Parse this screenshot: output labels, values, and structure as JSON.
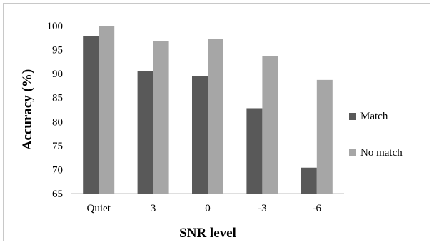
{
  "chart_data": {
    "type": "bar",
    "categories": [
      "Quiet",
      "3",
      "0",
      "-3",
      "-6"
    ],
    "series": [
      {
        "name": "Match",
        "values": [
          97.9,
          90.6,
          89.5,
          82.8,
          70.4
        ],
        "color": "#595959"
      },
      {
        "name": "No match",
        "values": [
          100.0,
          96.8,
          97.3,
          93.7,
          88.7
        ],
        "color": "#a6a6a6"
      }
    ],
    "xlabel": "SNR level",
    "ylabel": "Accuracy (%)",
    "ylim": [
      65,
      100
    ],
    "yticks": [
      65,
      70,
      75,
      80,
      85,
      90,
      95,
      100
    ],
    "grid": false,
    "legend_position": "right"
  }
}
